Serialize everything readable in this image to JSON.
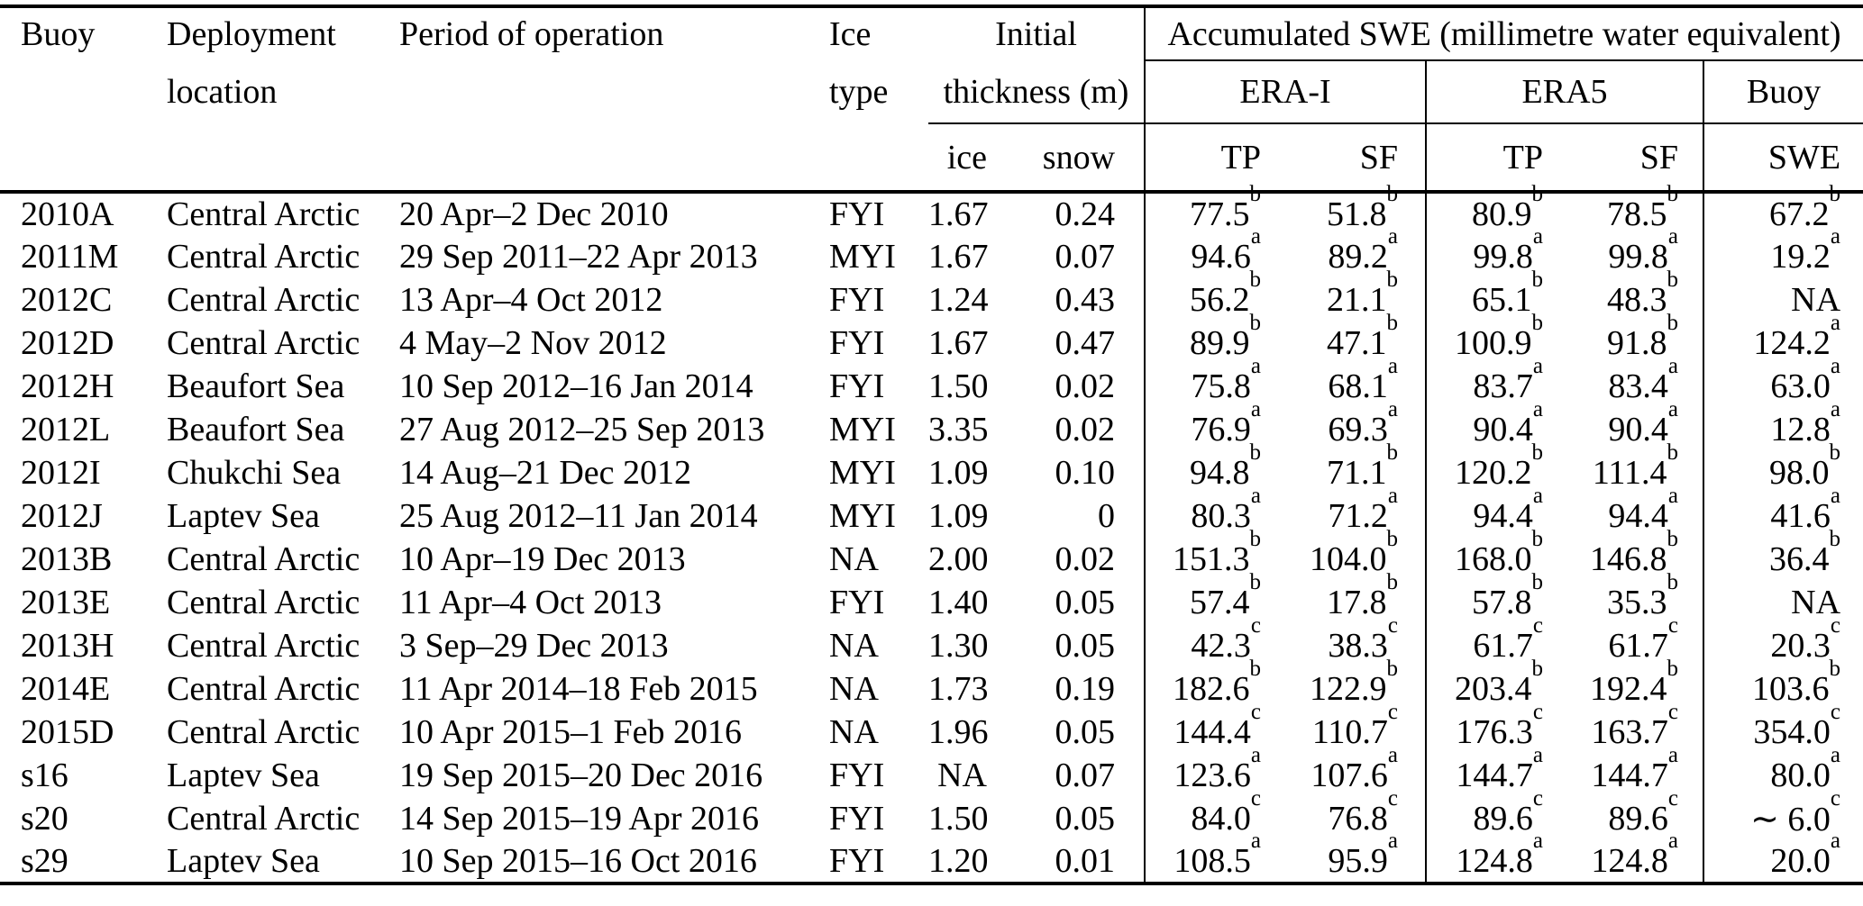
{
  "page": {
    "background": "#ffffff",
    "text_color": "#000000"
  },
  "table": {
    "header": {
      "buoy": {
        "line1": "Buoy"
      },
      "location": {
        "line1": "Deployment",
        "line2": "location"
      },
      "period": {
        "line1": "Period of operation"
      },
      "ice_type": {
        "line1": "Ice",
        "line2": "type"
      },
      "initial": {
        "line1": "Initial",
        "line2": "thickness (m)",
        "sub_ice": "ice",
        "sub_snow": "snow"
      },
      "accumulated": {
        "title": "Accumulated SWE (millimetre water equivalent)",
        "era_i": {
          "label": "ERA-I",
          "sub_tp": "TP",
          "sub_sf": "SF"
        },
        "era5": {
          "label": "ERA5",
          "sub_tp": "TP",
          "sub_sf": "SF"
        },
        "buoy": {
          "label": "Buoy",
          "sub_swe": "SWE"
        }
      }
    },
    "rows": [
      {
        "buoy": "2010A",
        "location": "Central Arctic",
        "period": "20 Apr–2 Dec 2010",
        "ice_type": "FYI",
        "ice": "1.67",
        "snow": "0.24",
        "era_i_tp": "77.5^b",
        "era_i_sf": "51.8^b",
        "era5_tp": "80.9^b",
        "era5_sf": "78.5^b",
        "buoy_swe": "67.2^b"
      },
      {
        "buoy": "2011M",
        "location": "Central Arctic",
        "period": "29 Sep 2011–22 Apr 2013",
        "ice_type": "MYI",
        "ice": "1.67",
        "snow": "0.07",
        "era_i_tp": "94.6^a",
        "era_i_sf": "89.2^a",
        "era5_tp": "99.8^a",
        "era5_sf": "99.8^a",
        "buoy_swe": "19.2^a"
      },
      {
        "buoy": "2012C",
        "location": "Central Arctic",
        "period": "13 Apr–4 Oct 2012",
        "ice_type": "FYI",
        "ice": "1.24",
        "snow": "0.43",
        "era_i_tp": "56.2^b",
        "era_i_sf": "21.1^b",
        "era5_tp": "65.1^b",
        "era5_sf": "48.3^b",
        "buoy_swe": "NA"
      },
      {
        "buoy": "2012D",
        "location": "Central Arctic",
        "period": "4 May–2 Nov 2012",
        "ice_type": "FYI",
        "ice": "1.67",
        "snow": "0.47",
        "era_i_tp": "89.9^b",
        "era_i_sf": "47.1^b",
        "era5_tp": "100.9^b",
        "era5_sf": "91.8^b",
        "buoy_swe": "124.2^a"
      },
      {
        "buoy": "2012H",
        "location": "Beaufort Sea",
        "period": "10 Sep 2012–16 Jan 2014",
        "ice_type": "FYI",
        "ice": "1.50",
        "snow": "0.02",
        "era_i_tp": "75.8^a",
        "era_i_sf": "68.1^a",
        "era5_tp": "83.7^a",
        "era5_sf": "83.4^a",
        "buoy_swe": "63.0^a"
      },
      {
        "buoy": "2012L",
        "location": "Beaufort Sea",
        "period": "27 Aug 2012–25 Sep 2013",
        "ice_type": "MYI",
        "ice": "3.35",
        "snow": "0.02",
        "era_i_tp": "76.9^a",
        "era_i_sf": "69.3^a",
        "era5_tp": "90.4^a",
        "era5_sf": "90.4^a",
        "buoy_swe": "12.8^a"
      },
      {
        "buoy": "2012I",
        "location": "Chukchi Sea",
        "period": "14 Aug–21 Dec 2012",
        "ice_type": "MYI",
        "ice": "1.09",
        "snow": "0.10",
        "era_i_tp": "94.8^b",
        "era_i_sf": "71.1^b",
        "era5_tp": "120.2^b",
        "era5_sf": "111.4^b",
        "buoy_swe": "98.0^b"
      },
      {
        "buoy": "2012J",
        "location": "Laptev Sea",
        "period": "25 Aug 2012–11 Jan 2014",
        "ice_type": "MYI",
        "ice": "1.09",
        "snow": "0",
        "era_i_tp": "80.3^a",
        "era_i_sf": "71.2^a",
        "era5_tp": "94.4^a",
        "era5_sf": "94.4^a",
        "buoy_swe": "41.6^a"
      },
      {
        "buoy": "2013B",
        "location": "Central Arctic",
        "period": "10 Apr–19 Dec 2013",
        "ice_type": "NA",
        "ice": "2.00",
        "snow": "0.02",
        "era_i_tp": "151.3^b",
        "era_i_sf": "104.0^b",
        "era5_tp": "168.0^b",
        "era5_sf": "146.8^b",
        "buoy_swe": "36.4^b"
      },
      {
        "buoy": "2013E",
        "location": "Central Arctic",
        "period": "11 Apr–4 Oct 2013",
        "ice_type": "FYI",
        "ice": "1.40",
        "snow": "0.05",
        "era_i_tp": "57.4^b",
        "era_i_sf": "17.8^b",
        "era5_tp": "57.8^b",
        "era5_sf": "35.3^b",
        "buoy_swe": "NA"
      },
      {
        "buoy": "2013H",
        "location": "Central Arctic",
        "period": "3 Sep–29 Dec 2013",
        "ice_type": "NA",
        "ice": "1.30",
        "snow": "0.05",
        "era_i_tp": "42.3^c",
        "era_i_sf": "38.3^c",
        "era5_tp": "61.7^c",
        "era5_sf": "61.7^c",
        "buoy_swe": "20.3^c"
      },
      {
        "buoy": "2014E",
        "location": "Central Arctic",
        "period": "11 Apr 2014–18 Feb 2015",
        "ice_type": "NA",
        "ice": "1.73",
        "snow": "0.19",
        "era_i_tp": "182.6^b",
        "era_i_sf": "122.9^b",
        "era5_tp": "203.4^b",
        "era5_sf": "192.4^b",
        "buoy_swe": "103.6^b"
      },
      {
        "buoy": "2015D",
        "location": "Central Arctic",
        "period": "10 Apr 2015–1 Feb 2016",
        "ice_type": "NA",
        "ice": "1.96",
        "snow": "0.05",
        "era_i_tp": "144.4^c",
        "era_i_sf": "110.7^c",
        "era5_tp": "176.3^c",
        "era5_sf": "163.7^c",
        "buoy_swe": "354.0^c"
      },
      {
        "buoy": "s16",
        "location": "Laptev Sea",
        "period": "19 Sep 2015–20 Dec 2016",
        "ice_type": "FYI",
        "ice": "NA",
        "snow": "0.07",
        "era_i_tp": "123.6^a",
        "era_i_sf": "107.6^a",
        "era5_tp": "144.7^a",
        "era5_sf": "144.7^a",
        "buoy_swe": "80.0^a"
      },
      {
        "buoy": "s20",
        "location": "Central Arctic",
        "period": "14 Sep 2015–19 Apr 2016",
        "ice_type": "FYI",
        "ice": "1.50",
        "snow": "0.05",
        "era_i_tp": "84.0^c",
        "era_i_sf": "76.8^c",
        "era5_tp": "89.6^c",
        "era5_sf": "89.6^c",
        "buoy_swe": "∼ 6.0^c"
      },
      {
        "buoy": "s29",
        "location": "Laptev Sea",
        "period": "10 Sep 2015–16 Oct 2016",
        "ice_type": "FYI",
        "ice": "1.20",
        "snow": "0.01",
        "era_i_tp": "108.5^a",
        "era_i_sf": "95.9^a",
        "era5_tp": "124.8^a",
        "era5_sf": "124.8^a",
        "buoy_swe": "20.0^a"
      }
    ]
  }
}
